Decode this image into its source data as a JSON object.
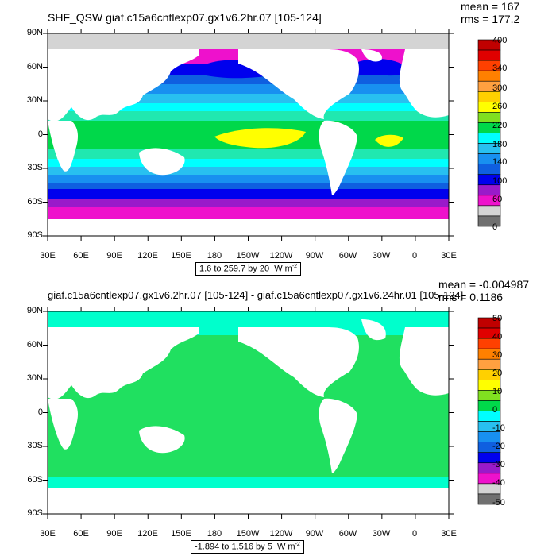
{
  "colors": {
    "land": "#ffffff",
    "ice": "#d4d4d4",
    "level_colors": [
      "#707070",
      "#d4d4d4",
      "#ee11cc",
      "#9a1aca",
      "#0000ee",
      "#0f5fe0",
      "#1890f0",
      "#28c0f0",
      "#00ffff",
      "#20e8b0",
      "#00d84a",
      "#80e020",
      "#ffff00",
      "#ffd000",
      "#ffa040",
      "#ff8000",
      "#ff4000",
      "#e00000",
      "#c00000"
    ]
  },
  "panels": [
    {
      "title": "SHF_QSW giaf.c15a6cntlexp07.gx1v6.2hr.07 [105-124]",
      "mean": "mean = 167",
      "rms": "rms = 177.2",
      "range_prefix": "1.6 to 259.7 by 20",
      "range_units": "W m",
      "range_exp": "-2",
      "lat_labels": [
        "90N",
        "60N",
        "30N",
        "0",
        "30S",
        "60S",
        "90S"
      ],
      "lon_labels": [
        "30E",
        "60E",
        "90E",
        "120E",
        "150E",
        "180",
        "150W",
        "120W",
        "90W",
        "60W",
        "30W",
        "0",
        "30E"
      ],
      "colorbar_labels": [
        "400",
        "",
        "340",
        "300",
        "",
        "260",
        "220",
        "",
        "180",
        "",
        "140",
        "100",
        "",
        "60",
        "",
        "",
        "0"
      ]
    },
    {
      "title": "giaf.c15a6cntlexp07.gx1v6.2hr.07 [105-124] - giaf.c15a6cntlexp07.gx1v6.24hr.01 [105-124]",
      "mean": "mean = -0.004987",
      "rms": "rms = 0.1186",
      "range_prefix": "-1.894 to 1.516 by 5",
      "range_units": "W m",
      "range_exp": "-2",
      "lat_labels": [
        "90N",
        "60N",
        "30N",
        "0",
        "30S",
        "60S",
        "90S"
      ],
      "lon_labels": [
        "30E",
        "60E",
        "90E",
        "120E",
        "150E",
        "180",
        "150W",
        "120W",
        "90W",
        "60W",
        "30W",
        "0",
        "30E"
      ],
      "colorbar_labels": [
        "50",
        "40",
        "30",
        "20",
        "10",
        "0",
        "-10",
        "-20",
        "-30",
        "-40",
        "-50"
      ]
    }
  ]
}
